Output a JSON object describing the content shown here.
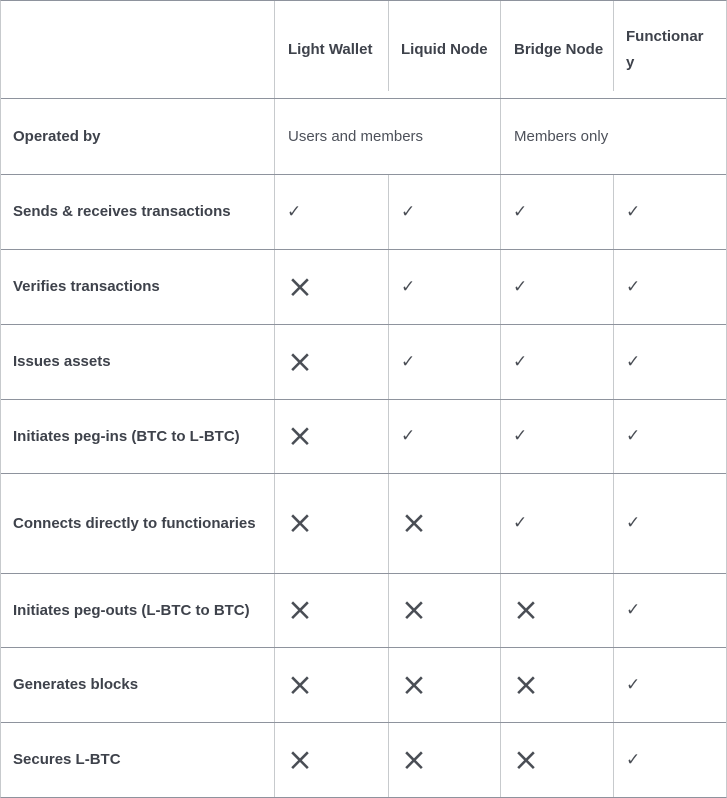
{
  "table": {
    "columns": [
      "",
      "Light Wallet",
      "Liquid Node",
      "Bridge Node",
      "Functionary"
    ],
    "operated": {
      "label": "Operated by",
      "groups": [
        "Users and members",
        "Members only"
      ]
    },
    "features": [
      {
        "label": "Sends & receives transactions",
        "marks": [
          "✓",
          "✓",
          "✓",
          "✓"
        ]
      },
      {
        "label": "Verifies transactions",
        "marks": [
          "×",
          "✓",
          "✓",
          "✓"
        ]
      },
      {
        "label": "Issues assets",
        "marks": [
          "×",
          "✓",
          "✓",
          "✓"
        ]
      },
      {
        "label": "Initiates peg-ins (BTC to L-BTC)",
        "marks": [
          "×",
          "✓",
          "✓",
          "✓"
        ]
      },
      {
        "label": "Connects directly to functionaries",
        "marks": [
          "×",
          "×",
          "✓",
          "✓"
        ]
      },
      {
        "label": "Initiates peg-outs (L-BTC to BTC)",
        "marks": [
          "×",
          "×",
          "×",
          "✓"
        ]
      },
      {
        "label": "Generates blocks",
        "marks": [
          "×",
          "×",
          "×",
          "✓"
        ]
      },
      {
        "label": "Secures L-BTC",
        "marks": [
          "×",
          "×",
          "×",
          "✓"
        ]
      }
    ],
    "glyphs": {
      "check": "✓",
      "cross": "×"
    },
    "colors": {
      "heading_text": "#3e424b",
      "body_text": "#4d515a",
      "mark": "#4a4e55",
      "row_border": "#8e939d",
      "column_border": "#c7cacd",
      "background": "#ffffff"
    }
  },
  "chart_data": {
    "type": "table",
    "title": "Liquid Network node capability comparison",
    "columns": [
      "Light Wallet",
      "Liquid Node",
      "Bridge Node",
      "Functionary"
    ],
    "rows": [
      {
        "feature": "Operated by",
        "values": [
          "Users and members",
          "Users and members",
          "Members only",
          "Members only"
        ]
      },
      {
        "feature": "Sends & receives transactions",
        "values": [
          "yes",
          "yes",
          "yes",
          "yes"
        ]
      },
      {
        "feature": "Verifies transactions",
        "values": [
          "no",
          "yes",
          "yes",
          "yes"
        ]
      },
      {
        "feature": "Issues assets",
        "values": [
          "no",
          "yes",
          "yes",
          "yes"
        ]
      },
      {
        "feature": "Initiates peg-ins (BTC to L-BTC)",
        "values": [
          "no",
          "yes",
          "yes",
          "yes"
        ]
      },
      {
        "feature": "Connects directly to functionaries",
        "values": [
          "no",
          "no",
          "yes",
          "yes"
        ]
      },
      {
        "feature": "Initiates peg-outs (L-BTC to BTC)",
        "values": [
          "no",
          "no",
          "no",
          "yes"
        ]
      },
      {
        "feature": "Generates blocks",
        "values": [
          "no",
          "no",
          "no",
          "yes"
        ]
      },
      {
        "feature": "Secures L-BTC",
        "values": [
          "no",
          "no",
          "no",
          "yes"
        ]
      }
    ]
  }
}
